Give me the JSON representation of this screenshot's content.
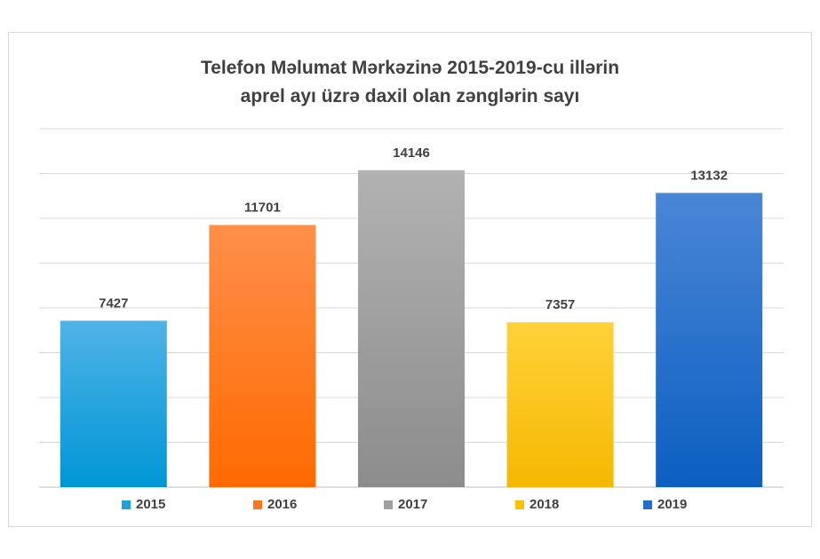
{
  "chart_data": {
    "type": "bar",
    "title_line1": "Telefon Məlumat Mərkəzinə 2015-2019-cu illərin",
    "title_line2": "aprel ayı üzrə daxil olan zənglərin sayı",
    "categories": [
      "2015",
      "2016",
      "2017",
      "2018",
      "2019"
    ],
    "values": [
      7427,
      11701,
      14146,
      7357,
      13132
    ],
    "data_labels": [
      "7427",
      "11701",
      "14146",
      "7357",
      "13132"
    ],
    "ylim": [
      0,
      16000
    ],
    "grid": true,
    "legend_position": "bottom",
    "colors": [
      [
        "#4fb3e6",
        "#0096d6"
      ],
      [
        "#ff8f4a",
        "#ff6a00"
      ],
      [
        "#b2b2b2",
        "#8c8c8c"
      ],
      [
        "#ffd23a",
        "#f5b800"
      ],
      [
        "#4a86d6",
        "#0b5fc1"
      ]
    ],
    "legend_colors": [
      "#1fa1e0",
      "#ff7520",
      "#a0a0a0",
      "#ffc000",
      "#1f6fd0"
    ]
  }
}
